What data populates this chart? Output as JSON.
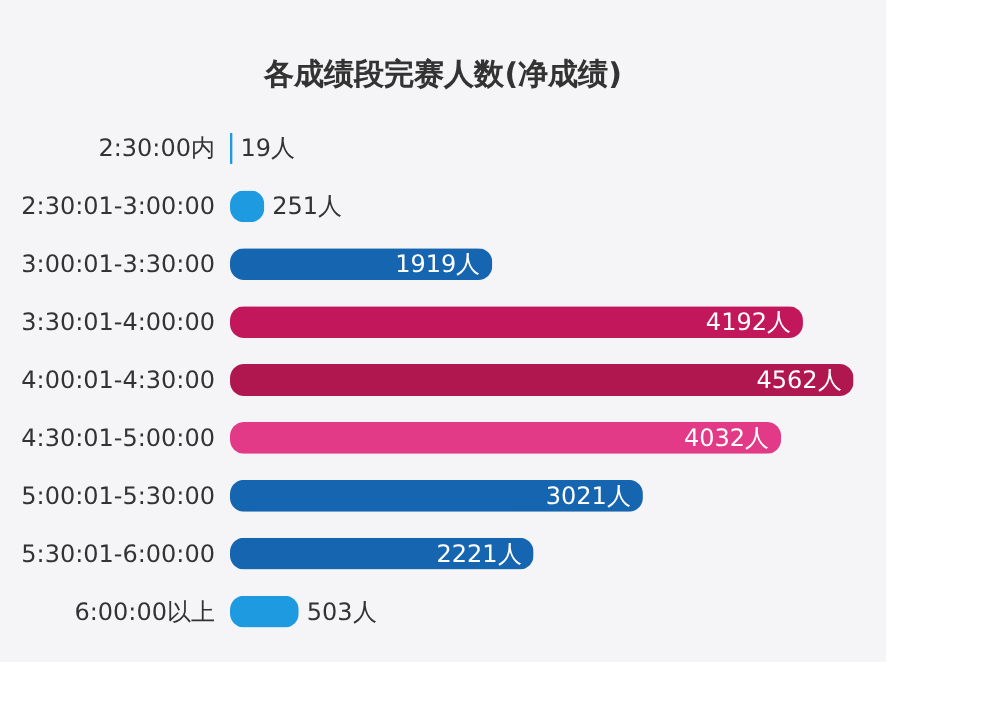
{
  "chart_data": {
    "type": "bar",
    "orientation": "horizontal",
    "title": "各成绩段完赛人数(净成绩)",
    "categories": [
      "2:30:00内",
      "2:30:01-3:00:00",
      "3:00:01-3:30:00",
      "3:30:01-4:00:00",
      "4:00:01-4:30:00",
      "4:30:01-5:00:00",
      "5:00:01-5:30:00",
      "5:30:01-6:00:00",
      "6:00:00以上"
    ],
    "values": [
      19,
      251,
      1919,
      4192,
      4562,
      4032,
      3021,
      2221,
      503
    ],
    "colors": [
      "#1e9be0",
      "#1e9be0",
      "#1565b0",
      "#c2185b",
      "#b0174e",
      "#e23a86",
      "#1565b0",
      "#1565b0",
      "#1e9be0"
    ],
    "value_labels": [
      "19人",
      "251人",
      "1919人",
      "4192人",
      "4562人",
      "4032人",
      "3021人",
      "2221人",
      "503人"
    ],
    "grid": false
  }
}
